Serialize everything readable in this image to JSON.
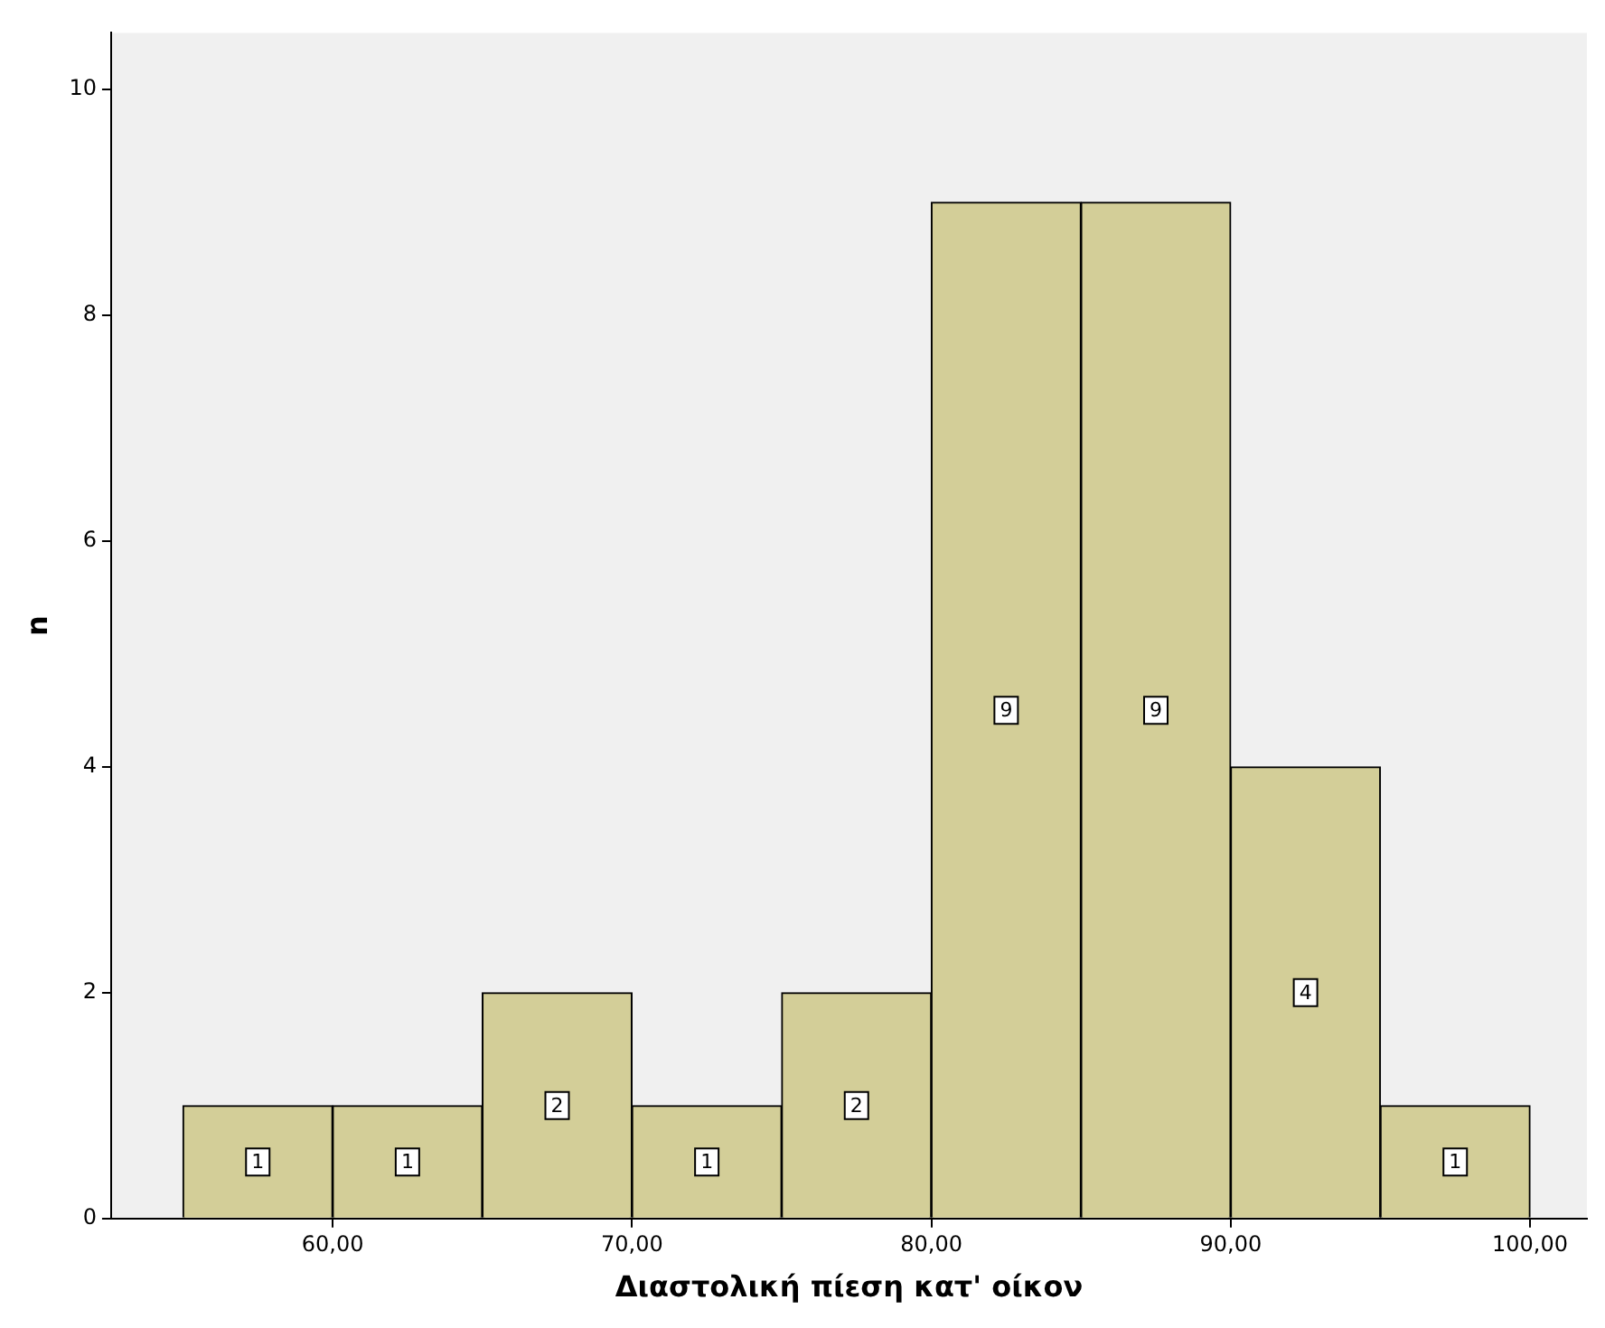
{
  "chart_data": {
    "type": "histogram",
    "xlabel": "Διαστολική πίεση κατ' οίκον",
    "ylabel": "n",
    "bins": [
      55,
      60,
      65,
      70,
      75,
      80,
      85,
      90,
      95,
      100
    ],
    "values": [
      1,
      1,
      2,
      1,
      2,
      9,
      9,
      4,
      1
    ],
    "color": "#d3ce98",
    "xlim": [
      52.6,
      101.9
    ],
    "xticks": [
      {
        "value": 60,
        "label": "60,00"
      },
      {
        "value": 70,
        "label": "70,00"
      },
      {
        "value": 80,
        "label": "80,00"
      },
      {
        "value": 90,
        "label": "90,00"
      },
      {
        "value": 100,
        "label": "100,00"
      }
    ],
    "ylim": [
      0,
      10.5
    ],
    "yticks": [
      0,
      2,
      4,
      6,
      8,
      10
    ],
    "grid": false,
    "legend": false,
    "data_labels": true
  }
}
